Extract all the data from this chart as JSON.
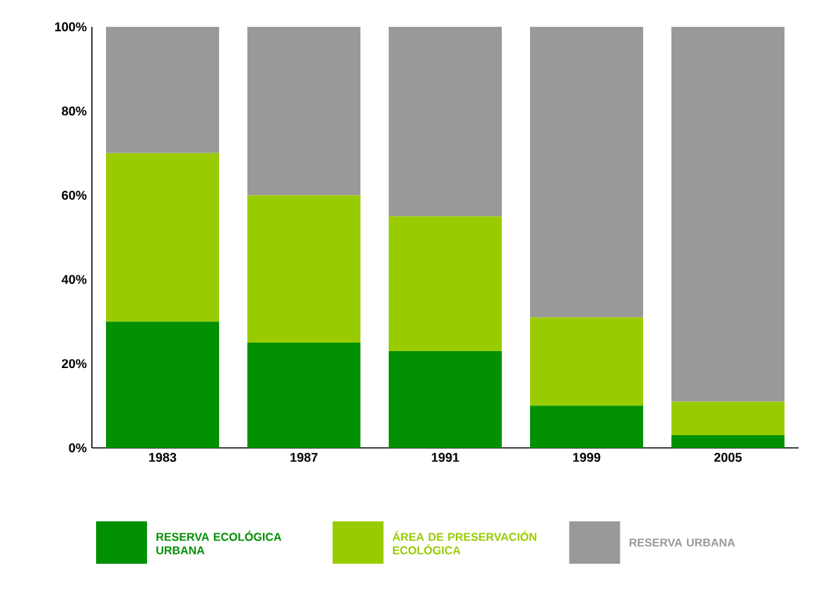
{
  "chart_data": {
    "type": "bar",
    "stacked": true,
    "legend": "bottom",
    "categories": [
      "1983",
      "1987",
      "1991",
      "1999",
      "2005"
    ],
    "series": [
      {
        "name": "RESERVA ECOLÓGICA URBANA",
        "color": "#009000",
        "values": [
          30,
          25,
          23,
          10,
          3
        ]
      },
      {
        "name": "ÁREA DE PRESERVACIÓN ECOLÓGICA",
        "color": "#99cc00",
        "values": [
          40,
          35,
          32,
          21,
          8
        ]
      },
      {
        "name": "RESERVA URBANA",
        "color": "#999999",
        "values": [
          30,
          40,
          45,
          69,
          89
        ]
      }
    ],
    "ylim": [
      0,
      100
    ],
    "yticks": [
      {
        "value": 0,
        "label": "0%"
      },
      {
        "value": 20,
        "label": "20%"
      },
      {
        "value": 40,
        "label": "40%"
      },
      {
        "value": 60,
        "label": "60%"
      },
      {
        "value": 80,
        "label": "80%"
      },
      {
        "value": 100,
        "label": "100%"
      }
    ]
  }
}
